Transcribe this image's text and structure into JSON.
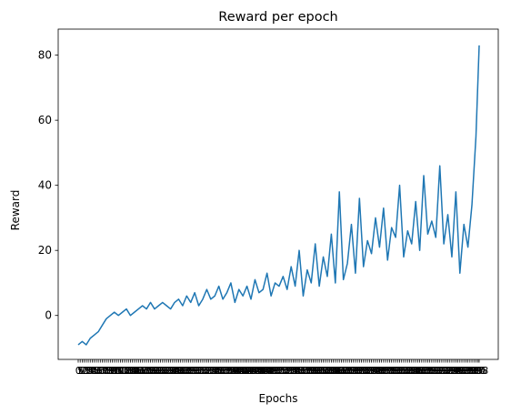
{
  "chart_data": {
    "type": "line",
    "title": "Reward per epoch",
    "xlabel": "Epochs",
    "ylabel": "Reward",
    "ylim": [
      -13.5,
      88
    ],
    "grid": false,
    "line_color": "#1f77b4",
    "y_ticks": [
      0,
      20,
      40,
      60,
      80
    ],
    "x_tick_labels": [
      "0",
      "5",
      "10",
      "15",
      "20",
      "25",
      "30",
      "35",
      "40",
      "45",
      "50",
      "55",
      "60",
      "65",
      "70",
      "75",
      "80",
      "85",
      "90",
      "95",
      "100",
      "105",
      "110",
      "115",
      "120",
      "125",
      "130",
      "135",
      "140",
      "145",
      "150",
      "155",
      "160",
      "165",
      "170",
      "175",
      "180",
      "185",
      "190",
      "195",
      "200",
      "205",
      "210",
      "215",
      "220",
      "225",
      "230",
      "235",
      "240",
      "245",
      "250",
      "255",
      "260",
      "265",
      "270",
      "275",
      "280",
      "285",
      "290",
      "295",
      "300",
      "305",
      "310",
      "315",
      "320",
      "325",
      "330",
      "335",
      "340",
      "345",
      "350",
      "355",
      "360",
      "365",
      "370",
      "375",
      "380",
      "385",
      "390",
      "395",
      "400",
      "405",
      "410",
      "415",
      "420",
      "425",
      "430",
      "435",
      "440",
      "445",
      "450",
      "455",
      "460",
      "465",
      "470",
      "475",
      "480",
      "485",
      "490",
      "495",
      "500",
      "505",
      "510",
      "515",
      "520",
      "525",
      "530",
      "535",
      "540",
      "545",
      "550",
      "555",
      "560",
      "565",
      "570",
      "575",
      "580",
      "585",
      "590",
      "595",
      "600",
      "605",
      "610",
      "615",
      "620",
      "625",
      "630",
      "635",
      "640",
      "645",
      "650",
      "655",
      "660",
      "665",
      "670",
      "675",
      "680",
      "685",
      "690",
      "695",
      "700",
      "705",
      "710",
      "715",
      "720",
      "725",
      "730",
      "735",
      "740",
      "745",
      "750",
      "755",
      "760",
      "765",
      "770",
      "775",
      "780",
      "785",
      "790",
      "795",
      "800",
      "805",
      "810",
      "815",
      "820",
      "825",
      "830",
      "835",
      "840",
      "845",
      "850",
      "855",
      "860",
      "865",
      "870",
      "875",
      "880",
      "885",
      "890",
      "895",
      "900",
      "905",
      "910",
      "915",
      "920",
      "925",
      "930",
      "935",
      "940",
      "945",
      "950",
      "955",
      "960",
      "965",
      "970",
      "975",
      "980",
      "985",
      "990",
      "995",
      "998"
    ],
    "series": [
      {
        "name": "",
        "x": [
          0,
          10,
          20,
          30,
          40,
          50,
          60,
          70,
          80,
          90,
          100,
          110,
          120,
          130,
          140,
          150,
          160,
          170,
          180,
          190,
          200,
          210,
          220,
          230,
          240,
          250,
          260,
          270,
          280,
          290,
          300,
          310,
          320,
          330,
          340,
          350,
          360,
          370,
          380,
          390,
          400,
          410,
          420,
          430,
          440,
          450,
          460,
          470,
          480,
          490,
          500,
          510,
          520,
          530,
          540,
          550,
          560,
          570,
          580,
          590,
          600,
          610,
          620,
          630,
          640,
          650,
          660,
          670,
          680,
          690,
          700,
          710,
          720,
          730,
          740,
          750,
          760,
          770,
          780,
          790,
          800,
          810,
          820,
          830,
          840,
          850,
          860,
          870,
          880,
          890,
          900,
          910,
          920,
          930,
          940,
          950,
          960,
          970,
          980,
          990,
          998
        ],
        "y": [
          -9,
          -8,
          -9,
          -7,
          -6,
          -5,
          -3,
          -1,
          0,
          1,
          0,
          1,
          2,
          0,
          1,
          2,
          3,
          2,
          4,
          2,
          3,
          4,
          3,
          2,
          4,
          5,
          3,
          6,
          4,
          7,
          3,
          5,
          8,
          5,
          6,
          9,
          5,
          7,
          10,
          4,
          8,
          6,
          9,
          5,
          11,
          7,
          8,
          13,
          6,
          10,
          9,
          12,
          8,
          15,
          9,
          20,
          6,
          14,
          10,
          22,
          9,
          18,
          12,
          25,
          10,
          38,
          11,
          16,
          28,
          13,
          36,
          15,
          23,
          19,
          30,
          21,
          33,
          17,
          27,
          24,
          40,
          18,
          26,
          22,
          35,
          20,
          43,
          25,
          29,
          24,
          46,
          22,
          31,
          18,
          38,
          13,
          28,
          21,
          34,
          55,
          83
        ]
      }
    ]
  }
}
